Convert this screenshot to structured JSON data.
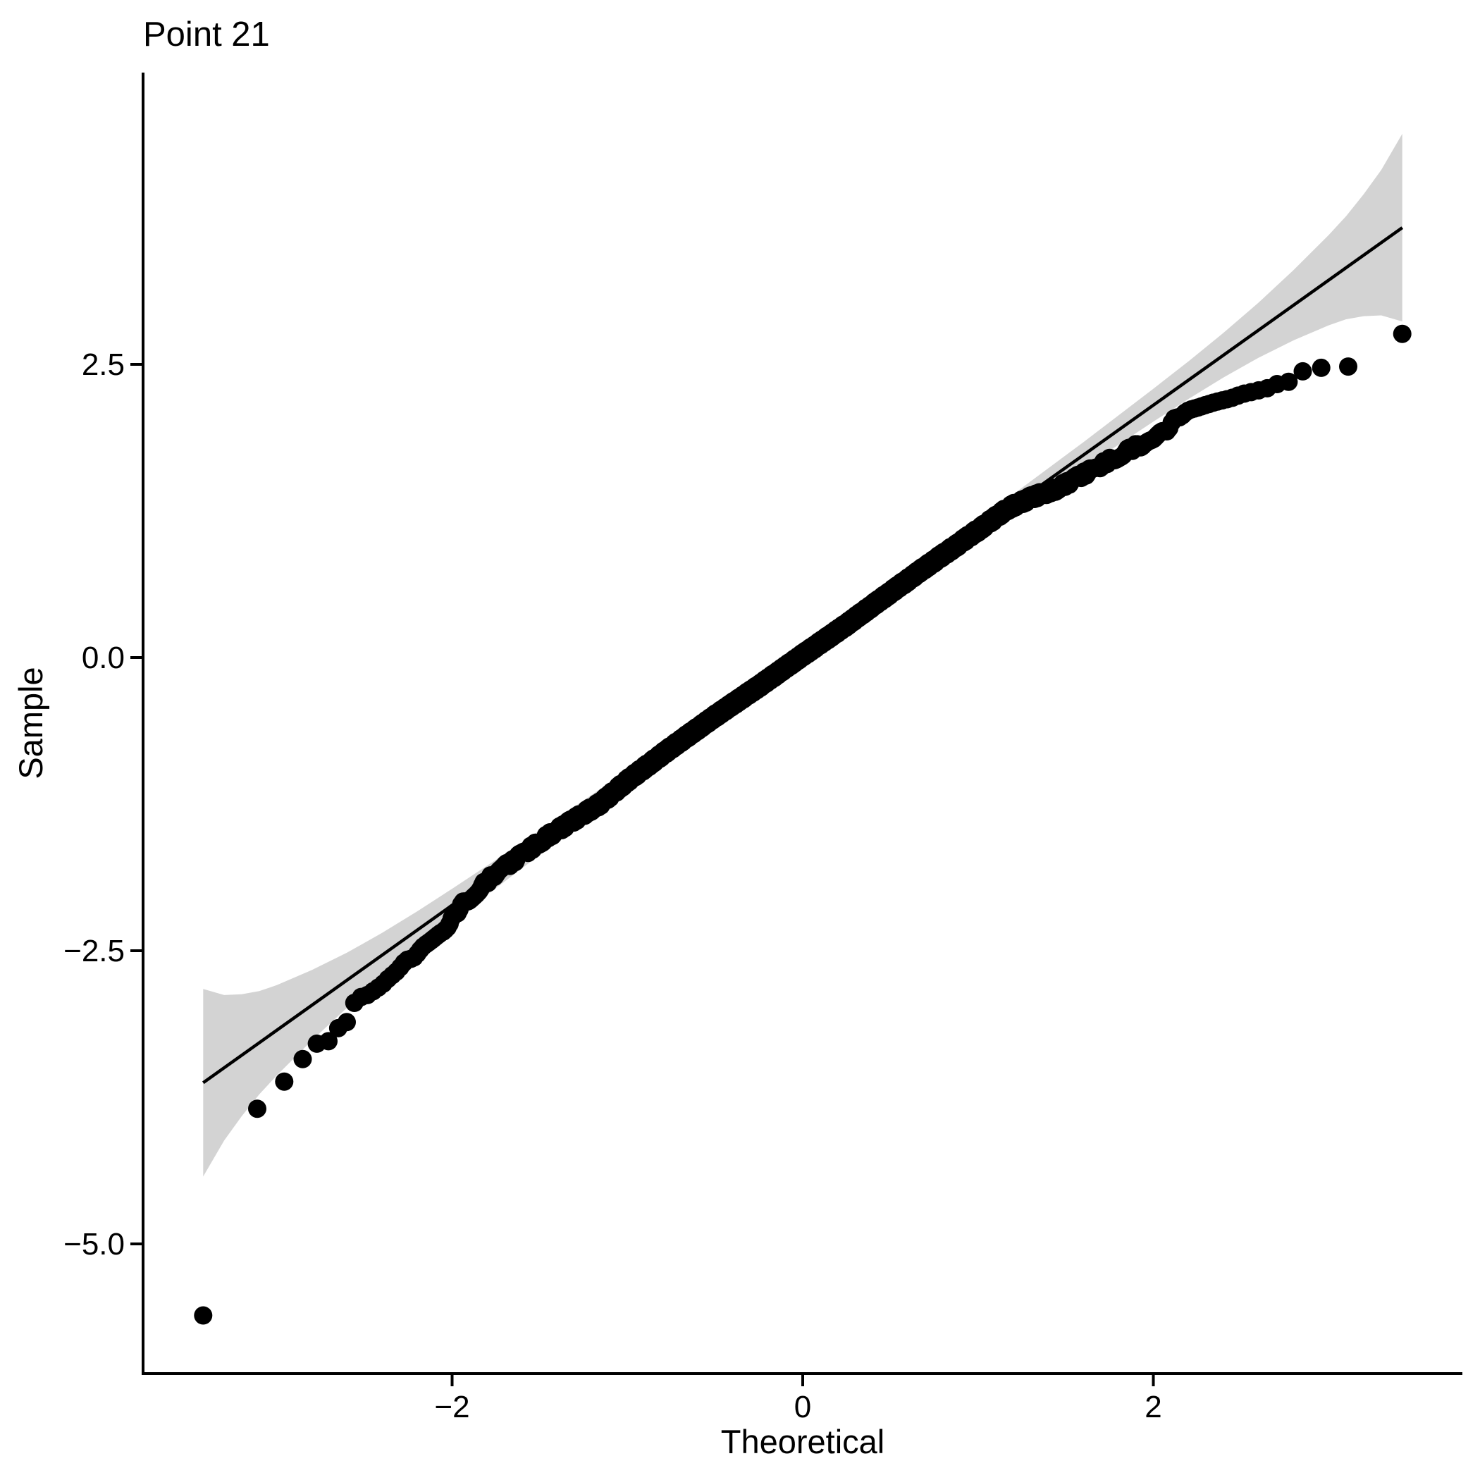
{
  "title": "Point 21",
  "colors": {
    "background": "#FFFFFF",
    "point": "#000000",
    "reference_line": "#000000",
    "confidence_band": "#D3D3D3",
    "axis": "#000000",
    "text": "#000000"
  },
  "axes": {
    "x": {
      "label": "Theoretical",
      "range": [
        -3.76,
        3.76
      ],
      "ticks": [
        {
          "value": -2,
          "label": "−2"
        },
        {
          "value": 0,
          "label": "0"
        },
        {
          "value": 2,
          "label": "2"
        }
      ]
    },
    "y": {
      "label": "Sample",
      "range": [
        -6.11,
        4.99
      ],
      "ticks": [
        {
          "value": 2.5,
          "label": "2.5"
        },
        {
          "value": 0.0,
          "label": "0.0"
        },
        {
          "value": -2.5,
          "label": "−2.5"
        },
        {
          "value": -5.0,
          "label": "−5.0"
        }
      ]
    }
  },
  "chart_data": {
    "type": "scatter",
    "subtype": "qq-plot",
    "title": "Point 21",
    "xlabel": "Theoretical",
    "ylabel": "Sample",
    "xlim": [
      -3.76,
      3.76
    ],
    "ylim": [
      -6.11,
      4.99
    ],
    "grid": false,
    "legend": false,
    "n_points": 1613,
    "outlier_point": {
      "x": -3.42,
      "y": -5.61
    },
    "extreme_points": [
      [
        -3.42,
        -5.61
      ],
      [
        -3.1,
        -3.78
      ],
      [
        -2.96,
        -3.62
      ],
      [
        -2.85,
        -3.42
      ],
      [
        2.85,
        2.44
      ],
      [
        2.95,
        2.47
      ],
      [
        3.11,
        2.48
      ],
      [
        3.42,
        2.76
      ]
    ],
    "reference_line": {
      "slope": 1.066,
      "intercept": 0.02,
      "x_start": -3.42,
      "x_end": 3.42
    },
    "curve_anchors": {
      "comment": "Empirical QQ curve: sample quantile y as a function of theoretical quantile x, read from the plotted points",
      "x": [
        -3.42,
        -3.1,
        -2.96,
        -2.85,
        -2.77,
        -2.7,
        -2.64,
        -2.59,
        -2.55,
        -2.48,
        -2.4,
        -2.3,
        -2.18,
        -2.05,
        -1.95,
        -1.85,
        -1.76,
        -1.6,
        -1.45,
        -1.3,
        -1.15,
        -1.0,
        -0.76,
        -0.5,
        -0.25,
        0.0,
        0.25,
        0.45,
        0.7,
        0.9,
        1.05,
        1.18,
        1.3,
        1.45,
        1.6,
        1.75,
        1.9,
        2.0,
        2.08,
        2.14,
        2.25,
        2.4,
        2.55,
        2.66,
        2.7,
        2.77,
        2.85,
        2.95,
        3.11,
        3.42
      ],
      "y": [
        -5.61,
        -3.78,
        -3.62,
        -3.42,
        -3.29,
        -3.27,
        -3.14,
        -3.1,
        -2.91,
        -2.88,
        -2.8,
        -2.64,
        -2.5,
        -2.33,
        -2.12,
        -1.98,
        -1.85,
        -1.68,
        -1.52,
        -1.38,
        -1.24,
        -1.05,
        -0.78,
        -0.5,
        -0.245,
        0.02,
        0.28,
        0.5,
        0.77,
        0.98,
        1.14,
        1.28,
        1.36,
        1.44,
        1.56,
        1.68,
        1.8,
        1.85,
        1.95,
        2.06,
        2.12,
        2.2,
        2.26,
        2.3,
        2.33,
        2.35,
        2.44,
        2.47,
        2.48,
        2.76
      ]
    },
    "confidence_band": {
      "x": [
        -3.42,
        -3.3,
        -3.2,
        -3.1,
        -3.0,
        -2.8,
        -2.6,
        -2.4,
        -2.2,
        -2.0,
        -1.6,
        -1.2,
        -0.8,
        -0.4,
        0.0,
        0.4,
        0.8,
        1.2,
        1.6,
        2.0,
        2.2,
        2.4,
        2.6,
        2.8,
        3.0,
        3.1,
        3.2,
        3.3,
        3.42
      ],
      "half_width": [
        0.8,
        0.62,
        0.52,
        0.44,
        0.385,
        0.3,
        0.235,
        0.19,
        0.16,
        0.14,
        0.11,
        0.092,
        0.08,
        0.073,
        0.07,
        0.073,
        0.08,
        0.092,
        0.11,
        0.14,
        0.16,
        0.19,
        0.235,
        0.3,
        0.385,
        0.44,
        0.52,
        0.62,
        0.8
      ]
    }
  }
}
